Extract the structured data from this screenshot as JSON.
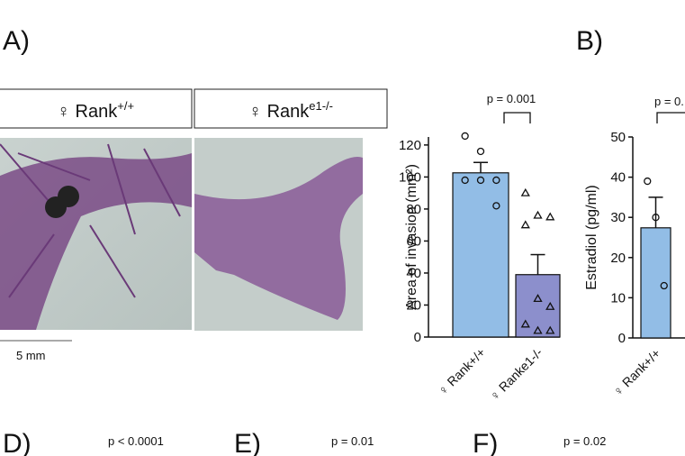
{
  "panels": {
    "a": "A)",
    "b": "B)",
    "d": "D)",
    "e": "E)",
    "f": "F)"
  },
  "image_headers": [
    {
      "symbol": "♀",
      "name": "Rank",
      "sup": "+/+"
    },
    {
      "symbol": "♀",
      "name": "Rank",
      "sup": "e1-/-"
    }
  ],
  "scale_bar": "5 mm",
  "bottom_pvalues": [
    "p < 0.0001",
    "p = 0.01",
    "p = 0.02"
  ],
  "chart_data": [
    {
      "type": "bar",
      "ylabel": "Area of invasion (mm²)",
      "categories": [
        "♀ Rank+/+",
        "♀ Ranke1-/-"
      ],
      "values": [
        102.6,
        39
      ],
      "errors": [
        6.5,
        12.5
      ],
      "points": [
        [
          125.6,
          116,
          98,
          98,
          98,
          82
        ],
        [
          90,
          76,
          75,
          70,
          24,
          19,
          8,
          4,
          4
        ]
      ],
      "markers": [
        "circle",
        "triangle"
      ],
      "colors": [
        "#92bde6",
        "#8c8fcc"
      ],
      "ylim": [
        0,
        125
      ],
      "yticks": [
        0,
        20,
        40,
        60,
        80,
        100,
        120
      ],
      "pvalue": "p = 0.001"
    },
    {
      "type": "bar",
      "ylabel": "Estradiol (pg/ml)",
      "categories": [
        "♀ Rank+/+"
      ],
      "values": [
        27.4
      ],
      "errors": [
        7.6
      ],
      "points": [
        [
          39,
          30,
          13
        ]
      ],
      "markers": [
        "circle"
      ],
      "colors": [
        "#92bde6"
      ],
      "ylim": [
        0,
        50
      ],
      "yticks": [
        0,
        10,
        20,
        30,
        40,
        50
      ],
      "pvalue": "p = 0."
    }
  ]
}
